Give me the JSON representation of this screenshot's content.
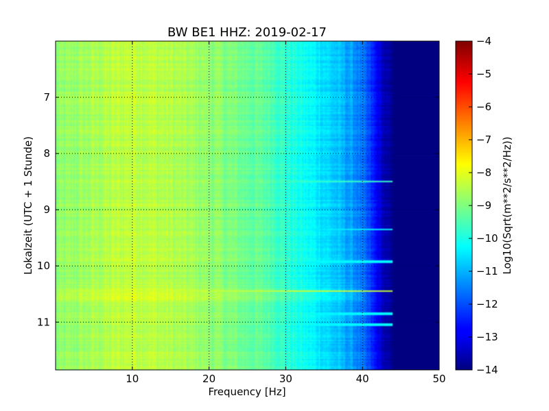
{
  "chart_data": {
    "type": "heatmap",
    "title": "BW BE1 HHZ: 2019-02-17",
    "xlabel": "Frequency [Hz]",
    "ylabel": "Lokalzeit (UTC + 1 Stunde)",
    "colorbar_label": "Log10(Sqrt(m**2/s**2/Hz))",
    "xlim": [
      0,
      50
    ],
    "ylim": [
      6,
      11.85
    ],
    "y_inverted": true,
    "grid": true,
    "colormap": "jet",
    "x_ticks": [
      {
        "value": 10,
        "label": "10"
      },
      {
        "value": 20,
        "label": "20"
      },
      {
        "value": 30,
        "label": "30"
      },
      {
        "value": 40,
        "label": "40"
      },
      {
        "value": 50,
        "label": "50"
      }
    ],
    "y_ticks": [
      {
        "value": 7,
        "label": "7"
      },
      {
        "value": 8,
        "label": "8"
      },
      {
        "value": 9,
        "label": "9"
      },
      {
        "value": 10,
        "label": "10"
      },
      {
        "value": 11,
        "label": "11"
      }
    ],
    "colorbar": {
      "range": [
        -14,
        -4
      ],
      "ticks": [
        {
          "value": -4,
          "label": "−4"
        },
        {
          "value": -5,
          "label": "−5"
        },
        {
          "value": -6,
          "label": "−6"
        },
        {
          "value": -7,
          "label": "−7"
        },
        {
          "value": -8,
          "label": "−8"
        },
        {
          "value": -9,
          "label": "−9"
        },
        {
          "value": -10,
          "label": "−10"
        },
        {
          "value": -11,
          "label": "−11"
        },
        {
          "value": -12,
          "label": "−12"
        },
        {
          "value": -13,
          "label": "−13"
        },
        {
          "value": -14,
          "label": "−14"
        }
      ]
    },
    "spectrum_profile": {
      "frequency_hz": [
        0,
        5,
        10,
        15,
        20,
        25,
        28,
        30,
        32,
        35,
        37,
        39,
        40,
        41,
        42,
        43,
        44,
        45,
        50
      ],
      "log_amplitude": [
        -8.9,
        -8.6,
        -8.3,
        -8.5,
        -8.8,
        -9.2,
        -9.4,
        -9.8,
        -10.1,
        -10.5,
        -10.9,
        -11.3,
        -11.7,
        -12.2,
        -12.9,
        -13.6,
        -14,
        -14,
        -14
      ]
    },
    "horizontal_bands": [
      {
        "time_h": 8.5,
        "log_amplitude": -9.7
      },
      {
        "time_h": 9.35,
        "log_amplitude": -10.4
      },
      {
        "time_h": 9.92,
        "log_amplitude": -10.3
      },
      {
        "time_h": 10.45,
        "log_amplitude": -8.3
      },
      {
        "time_h": 10.85,
        "log_amplitude": -10.3
      },
      {
        "time_h": 11.05,
        "log_amplitude": -10.3
      }
    ]
  }
}
